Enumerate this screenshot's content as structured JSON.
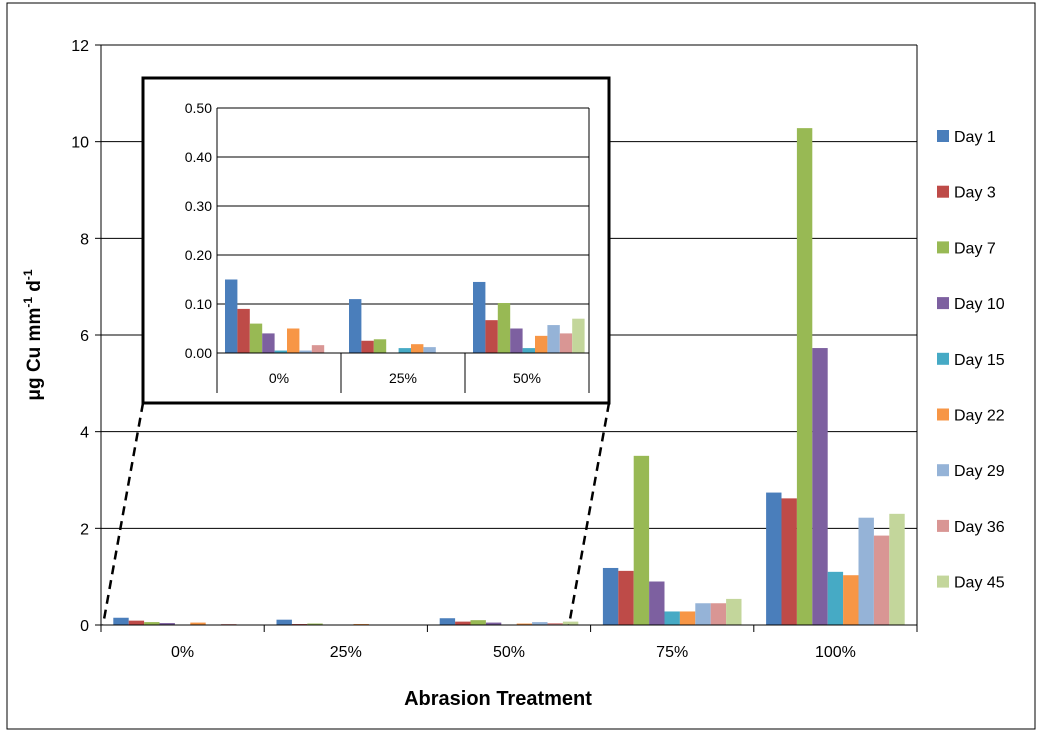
{
  "chart_data": [
    {
      "type": "bar",
      "categories": [
        "0%",
        "25%",
        "50%",
        "75%",
        "100%"
      ],
      "xlabel": "Abrasion Treatment",
      "ylabel": "μg Cu mm⁻¹ d⁻¹",
      "ylabel_parts": {
        "main": "μg Cu mm",
        "sup1": "-1",
        "mid": " d",
        "sup2": "-1"
      },
      "ylim": [
        0,
        12
      ],
      "yticks": [
        "0",
        "2",
        "4",
        "6",
        "8",
        "10",
        "12"
      ],
      "grid": true,
      "legend": "right",
      "series": [
        {
          "name": "Day 1",
          "color": "#4a7ebb",
          "values": [
            0.15,
            0.11,
            0.14,
            1.18,
            2.74
          ]
        },
        {
          "name": "Day 3",
          "color": "#be4b48",
          "values": [
            0.09,
            0.02,
            0.07,
            1.12,
            2.62
          ]
        },
        {
          "name": "Day 7",
          "color": "#98b954",
          "values": [
            0.06,
            0.03,
            0.1,
            3.5,
            10.28
          ]
        },
        {
          "name": "Day 10",
          "color": "#7d60a0",
          "values": [
            0.04,
            0.0,
            0.05,
            0.9,
            5.73
          ]
        },
        {
          "name": "Day 15",
          "color": "#46aac5",
          "values": [
            0.0,
            0.01,
            0.01,
            0.28,
            1.1
          ]
        },
        {
          "name": "Day 22",
          "color": "#f79646",
          "values": [
            0.05,
            0.02,
            0.03,
            0.28,
            1.03
          ]
        },
        {
          "name": "Day 29",
          "color": "#95b3d7",
          "values": [
            0.0,
            0.01,
            0.06,
            0.45,
            2.22
          ]
        },
        {
          "name": "Day 36",
          "color": "#d99694",
          "values": [
            0.02,
            0.0,
            0.04,
            0.45,
            1.85
          ]
        },
        {
          "name": "Day 45",
          "color": "#c3d69b",
          "values": [
            0.0,
            0.0,
            0.07,
            0.54,
            2.3
          ]
        }
      ]
    },
    {
      "type": "bar",
      "inset": true,
      "categories": [
        "0%",
        "25%",
        "50%"
      ],
      "ylim": [
        0,
        0.5
      ],
      "yticks": [
        "0.00",
        "0.10",
        "0.20",
        "0.30",
        "0.40",
        "0.50"
      ],
      "grid": true,
      "series": [
        {
          "name": "Day 1",
          "values": [
            0.15,
            0.11,
            0.145
          ]
        },
        {
          "name": "Day 3",
          "values": [
            0.09,
            0.025,
            0.067
          ]
        },
        {
          "name": "Day 7",
          "values": [
            0.06,
            0.028,
            0.102
          ]
        },
        {
          "name": "Day 10",
          "values": [
            0.04,
            0.0,
            0.05
          ]
        },
        {
          "name": "Day 15",
          "values": [
            0.005,
            0.01,
            0.01
          ]
        },
        {
          "name": "Day 22",
          "values": [
            0.05,
            0.018,
            0.035
          ]
        },
        {
          "name": "Day 29",
          "values": [
            0.005,
            0.012,
            0.057
          ]
        },
        {
          "name": "Day 36",
          "values": [
            0.016,
            0.0,
            0.04
          ]
        },
        {
          "name": "Day 45",
          "values": [
            0.0,
            0.0,
            0.07
          ]
        }
      ]
    }
  ]
}
